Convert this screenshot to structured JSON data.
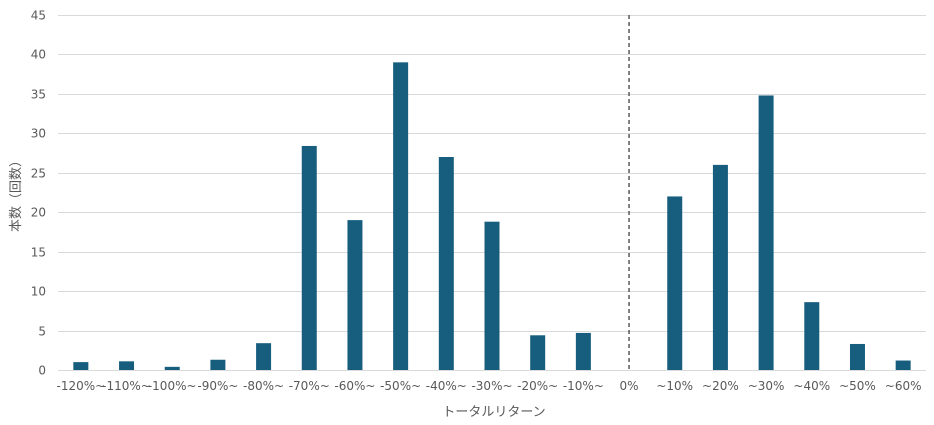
{
  "chart_data": {
    "type": "bar",
    "categories": [
      "-120%~",
      "-110%~",
      "-100%~",
      "-90%~",
      "-80%~",
      "-70%~",
      "-60%~",
      "-50%~",
      "-40%~",
      "-30%~",
      "-20%~",
      "-10%~",
      "0%",
      "~10%",
      "~20%",
      "~30%",
      "~40%",
      "~50%",
      "~60%"
    ],
    "values": [
      1,
      1.1,
      0.4,
      1.3,
      3.4,
      28.4,
      19,
      39,
      27,
      18.8,
      4.4,
      4.7,
      0,
      22,
      26,
      34.8,
      8.6,
      3.3,
      1.2
    ],
    "xlabel": "トータルリターン",
    "ylabel": "本数（回数）",
    "ylim": [
      0,
      45
    ],
    "yticks": [
      0,
      5,
      10,
      15,
      20,
      25,
      30,
      35,
      40,
      45
    ],
    "grid": true,
    "reference_line": {
      "category": "0%",
      "style": "dashed"
    },
    "colors": {
      "bar": "#175e7e",
      "grid": "#d9d9d9",
      "reference_line": "#595959",
      "text": "#595959"
    }
  }
}
